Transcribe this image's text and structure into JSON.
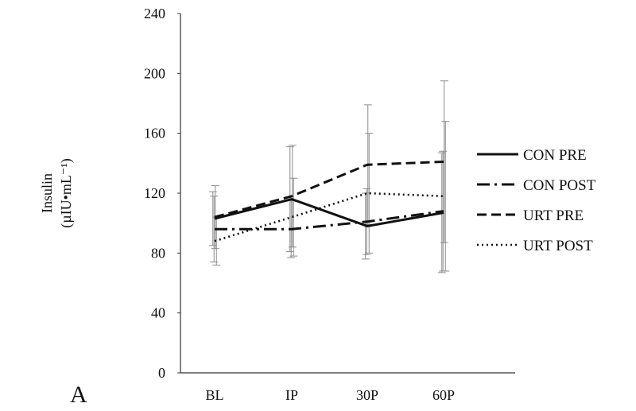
{
  "chart_data": {
    "type": "line",
    "title": "",
    "panel_label": "A",
    "ylabel": "Insulin",
    "ylabel_unit": "(µIU•mL⁻¹)",
    "xlabel": "",
    "categories": [
      "BL",
      "IP",
      "30P",
      "60P"
    ],
    "ylim": [
      0,
      240
    ],
    "yticks": [
      0,
      40,
      80,
      120,
      160,
      200,
      240
    ],
    "grid": false,
    "legend_position": "right",
    "series": [
      {
        "name": "CON PRE",
        "style": "solid",
        "values": [
          103,
          116,
          98,
          107
        ],
        "error": [
          18,
          35,
          22,
          40
        ]
      },
      {
        "name": "CON POST",
        "style": "dash-dot",
        "values": [
          96,
          96,
          101,
          108
        ],
        "error": [
          22,
          19,
          22,
          40
        ]
      },
      {
        "name": "URT PRE",
        "style": "dashed",
        "values": [
          104,
          118,
          139,
          141
        ],
        "error": [
          21,
          34,
          40,
          54
        ]
      },
      {
        "name": "URT POST",
        "style": "dotted",
        "values": [
          88,
          104,
          120,
          118
        ],
        "error": [
          16,
          26,
          40,
          50
        ]
      }
    ],
    "colors": {
      "line": "#111111",
      "error_bar": "#8c8c8c",
      "axis": "#333333"
    }
  }
}
